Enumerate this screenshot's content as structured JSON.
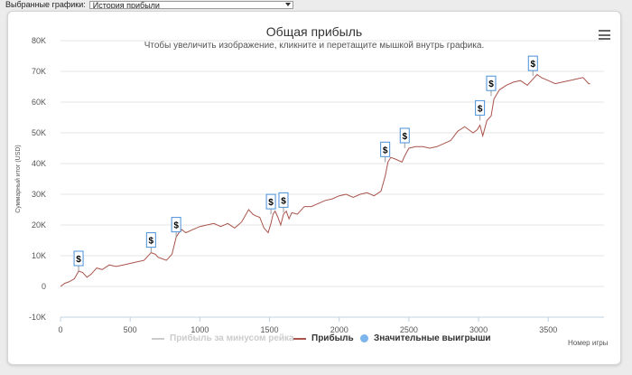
{
  "selector": {
    "label": "Выбранные графики:",
    "value": "История прибыли"
  },
  "chart_data": {
    "type": "line",
    "title": "Общая прибыль",
    "subtitle": "Чтобы увеличить изображение, кликните и перетащите мышкой внутрь графика.",
    "xlabel": "Номер игры",
    "ylabel": "Суммарный итог (USD)",
    "xlim": [
      0,
      3900
    ],
    "ylim": [
      -10000,
      80000
    ],
    "x_ticks": [
      0,
      500,
      1000,
      1500,
      2000,
      2500,
      3000,
      3500
    ],
    "y_ticks": [
      -10000,
      0,
      10000,
      20000,
      30000,
      40000,
      50000,
      60000,
      70000,
      80000
    ],
    "y_tick_labels": [
      "-10K",
      "0",
      "10K",
      "20K",
      "30K",
      "40K",
      "50K",
      "60K",
      "70K",
      "80K"
    ],
    "grid": "horizontal",
    "legend_position": "bottom",
    "series": [
      {
        "name": "Прибыль за минусом рейка",
        "color": "#cccccc",
        "hidden": true,
        "x": [],
        "y": []
      },
      {
        "name": "Прибыль",
        "color": "#a9544c",
        "x": [
          0,
          30,
          60,
          100,
          130,
          160,
          190,
          220,
          260,
          300,
          350,
          400,
          450,
          500,
          550,
          600,
          650,
          680,
          700,
          730,
          760,
          800,
          830,
          850,
          870,
          900,
          950,
          1000,
          1050,
          1100,
          1150,
          1200,
          1250,
          1300,
          1350,
          1380,
          1400,
          1430,
          1460,
          1490,
          1510,
          1525,
          1540,
          1560,
          1580,
          1600,
          1620,
          1640,
          1660,
          1700,
          1750,
          1800,
          1850,
          1900,
          1950,
          2000,
          2050,
          2100,
          2150,
          2200,
          2250,
          2300,
          2330,
          2350,
          2370,
          2400,
          2450,
          2470,
          2500,
          2550,
          2600,
          2650,
          2700,
          2750,
          2800,
          2850,
          2900,
          2930,
          2960,
          2990,
          3010,
          3030,
          3060,
          3090,
          3110,
          3130,
          3150,
          3200,
          3250,
          3300,
          3350,
          3400,
          3420,
          3450,
          3500,
          3550,
          3600,
          3650,
          3700,
          3750,
          3790,
          3800
        ],
        "y": [
          0,
          1000,
          1500,
          2500,
          5000,
          4500,
          3000,
          4000,
          6000,
          5500,
          7000,
          6500,
          7000,
          7500,
          8000,
          8500,
          11000,
          10500,
          9500,
          9000,
          8500,
          10500,
          16000,
          17500,
          18500,
          17500,
          18500,
          19500,
          20000,
          20500,
          19500,
          20500,
          19000,
          21000,
          25000,
          23500,
          23000,
          22500,
          19000,
          17500,
          20500,
          23500,
          24500,
          22500,
          20000,
          23500,
          24500,
          22000,
          24000,
          23500,
          26000,
          26000,
          27000,
          28000,
          28500,
          29500,
          30000,
          29000,
          30000,
          30500,
          29500,
          31000,
          36000,
          40500,
          42000,
          41500,
          40500,
          42500,
          45000,
          45500,
          45500,
          45000,
          45500,
          46500,
          47500,
          50500,
          52000,
          51000,
          50000,
          51000,
          52500,
          49000,
          54000,
          55500,
          61000,
          62500,
          64000,
          65500,
          66500,
          67000,
          65500,
          68000,
          69000,
          68000,
          67000,
          66000,
          66500,
          67000,
          67500,
          68000,
          66000,
          66000
        ]
      },
      {
        "name": "Значительные выигрыши",
        "color": "#7cb5ec",
        "marker_label": "$",
        "x": [
          130,
          650,
          830,
          1510,
          1600,
          2330,
          2470,
          3010,
          3090,
          3390
        ],
        "y": [
          5000,
          11000,
          16000,
          23500,
          24000,
          40500,
          45000,
          54000,
          62000,
          68500
        ]
      }
    ]
  }
}
